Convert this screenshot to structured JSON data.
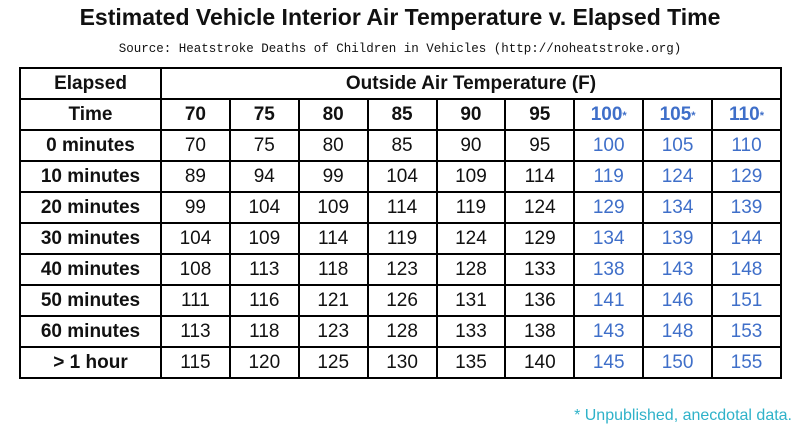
{
  "title": "Estimated Vehicle Interior Air Temperature v. Elapsed Time",
  "source": "Source: Heatstroke Deaths of Children in Vehicles (http://noheatstroke.org)",
  "table": {
    "corner": [
      "Elapsed",
      "Time"
    ],
    "group_header": "Outside Air Temperature (F)",
    "columns": [
      {
        "label": "70"
      },
      {
        "label": "75"
      },
      {
        "label": "80"
      },
      {
        "label": "85"
      },
      {
        "label": "90"
      },
      {
        "label": "95"
      },
      {
        "label": "100",
        "mark": "*"
      },
      {
        "label": "105",
        "mark": "*"
      },
      {
        "label": "110",
        "mark": "*"
      }
    ],
    "rows": [
      [
        "0 minutes",
        70,
        75,
        80,
        85,
        90,
        95,
        100,
        105,
        110
      ],
      [
        "10 minutes",
        89,
        94,
        99,
        104,
        109,
        114,
        119,
        124,
        129
      ],
      [
        "20 minutes",
        99,
        104,
        109,
        114,
        119,
        124,
        129,
        134,
        139
      ],
      [
        "30 minutes",
        104,
        109,
        114,
        119,
        124,
        129,
        134,
        139,
        144
      ],
      [
        "40 minutes",
        108,
        113,
        118,
        123,
        128,
        133,
        138,
        143,
        148
      ],
      [
        "50 minutes",
        111,
        116,
        121,
        126,
        131,
        136,
        141,
        146,
        151
      ],
      [
        "60 minutes",
        113,
        118,
        123,
        128,
        133,
        138,
        143,
        148,
        153
      ],
      [
        "> 1 hour",
        115,
        120,
        125,
        130,
        135,
        140,
        145,
        150,
        155
      ]
    ]
  },
  "footnote": "* Unpublished, anecdotal data."
}
